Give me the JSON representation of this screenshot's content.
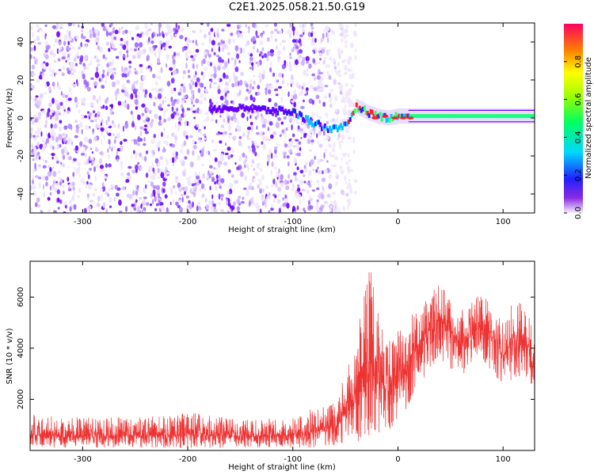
{
  "title": "C2E1.2025.058.21.50.G19",
  "colors": {
    "snr_line": "#ee3333",
    "track_low": "#6a00ff",
    "track_high": "#ff2020"
  },
  "chart_data": [
    {
      "type": "heatmap",
      "xlabel": "Height of straight line (km)",
      "ylabel": "Frequency (Hz)",
      "xlim": [
        -350,
        130
      ],
      "ylim": [
        -50,
        50
      ],
      "xticks": [
        -300,
        -200,
        -100,
        0,
        100
      ],
      "yticks": [
        -40,
        -20,
        0,
        20,
        40
      ],
      "colorbar": {
        "label": "Normalized spectral amplitude",
        "range": [
          0,
          1
        ],
        "ticks": [
          "0.0",
          "0.2",
          "0.4",
          "0.6",
          "0.8"
        ]
      },
      "signal_track": {
        "x": [
          -180,
          -150,
          -120,
          -100,
          -90,
          -80,
          -70,
          -60,
          -50,
          -45,
          -40,
          -30,
          -20,
          -10,
          0,
          20,
          50,
          100,
          130
        ],
        "y": [
          5,
          5,
          4,
          3,
          0,
          -3,
          -5,
          -6,
          -4,
          2,
          6,
          3,
          1,
          0,
          1,
          1,
          1,
          1,
          1
        ]
      },
      "noise_region_x": [
        -350,
        -60
      ]
    },
    {
      "type": "line",
      "xlabel": "Height of straight line (km)",
      "ylabel": "SNR (10 * v/v)",
      "xlim": [
        -350,
        130
      ],
      "ylim": [
        0,
        7400
      ],
      "xticks": [
        -300,
        -200,
        -100,
        0,
        100
      ],
      "yticks": [
        2000,
        4000,
        6000
      ],
      "envelope": {
        "x": [
          -350,
          -300,
          -250,
          -200,
          -150,
          -100,
          -80,
          -60,
          -50,
          -40,
          -30,
          -25,
          -20,
          -10,
          0,
          10,
          20,
          30,
          40,
          50,
          60,
          70,
          80,
          90,
          100,
          110,
          120,
          130
        ],
        "mean": [
          600,
          550,
          580,
          620,
          560,
          600,
          750,
          900,
          1400,
          2000,
          2800,
          3000,
          2600,
          2500,
          3000,
          3600,
          4200,
          4800,
          5100,
          4700,
          4200,
          4500,
          4900,
          4400,
          3700,
          4300,
          4200,
          3100
        ],
        "upper": [
          1400,
          1300,
          1300,
          1500,
          1200,
          1300,
          1700,
          2000,
          3000,
          4200,
          7300,
          7100,
          5500,
          4800,
          4800,
          5200,
          5600,
          6200,
          6500,
          6000,
          5500,
          5800,
          6200,
          5600,
          5000,
          5900,
          5700,
          4800
        ],
        "lower": [
          100,
          100,
          100,
          100,
          100,
          100,
          100,
          150,
          200,
          300,
          400,
          500,
          600,
          700,
          1000,
          1800,
          2500,
          3200,
          3500,
          3200,
          2900,
          3200,
          3600,
          3000,
          2500,
          2800,
          2900,
          1800
        ]
      }
    }
  ]
}
